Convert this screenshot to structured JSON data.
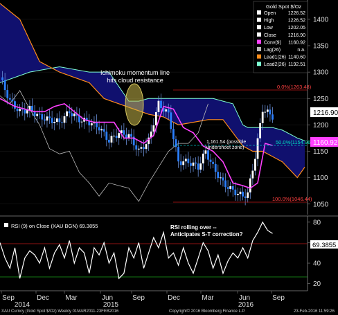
{
  "chart_data": [
    {
      "type": "line",
      "title": "Gold Spot $/Oz",
      "ylim": [
        1030,
        1430
      ],
      "y_ticks": [
        1050,
        1100,
        1150,
        1200,
        1250,
        1300,
        1350,
        1400
      ],
      "legend": [
        {
          "label": "Open",
          "value": "1226.52",
          "color": "#ffffff"
        },
        {
          "label": "High",
          "value": "1226.52",
          "color": "#ffffff"
        },
        {
          "label": "Low",
          "value": "1202.05",
          "color": "#ffffff"
        },
        {
          "label": "Close",
          "value": "1216.90",
          "color": "#ffffff"
        },
        {
          "label": "Conv(9)",
          "value": "1160.92",
          "color": "#ff40ff"
        },
        {
          "label": "Lag(26)",
          "value": "n.a.",
          "color": "#bbbbbb"
        },
        {
          "label": "Lead1(26)",
          "value": "1140.60",
          "color": "#ff8c1a"
        },
        {
          "label": "Lead2(26)",
          "value": "1192.51",
          "color": "#7fffd4"
        }
      ],
      "last_close_label": "1216.90",
      "conv_label": "1160.92",
      "fib_levels": [
        {
          "label": "0.0%(1263.48)",
          "value": 1263.48
        },
        {
          "label": "50.0%(1154.96)",
          "value": 1154.96
        },
        {
          "label": "100.0%(1046.44)",
          "value": 1046.44
        }
      ],
      "annotations": [
        "Ichimoku momentum line hits cloud resistance",
        "1,161.54 (possible undershoot zone)"
      ],
      "series": [
        {
          "name": "Close",
          "x": [
            0,
            4,
            8,
            12,
            16,
            20,
            24,
            28,
            32,
            36,
            40,
            44,
            48,
            52,
            56,
            60,
            64,
            68,
            72,
            76,
            80,
            83,
            86,
            90,
            94,
            98,
            100,
            103,
            106,
            110
          ],
          "values": [
            1290,
            1245,
            1225,
            1230,
            1215,
            1210,
            1205,
            1225,
            1210,
            1205,
            1195,
            1170,
            1185,
            1180,
            1150,
            1170,
            1240,
            1220,
            1130,
            1130,
            1120,
            1150,
            1120,
            1090,
            1075,
            1065,
            1070,
            1140,
            1230,
            1216
          ]
        },
        {
          "name": "Conv(9)",
          "x": [
            0,
            6,
            10,
            14,
            18,
            22,
            26,
            30,
            34,
            38,
            42,
            46,
            50,
            54,
            58,
            62,
            66,
            70,
            74,
            78,
            82,
            86,
            90,
            94,
            98,
            101,
            104,
            107,
            110
          ],
          "values": [
            1250,
            1235,
            1230,
            1225,
            1225,
            1235,
            1240,
            1225,
            1210,
            1205,
            1205,
            1205,
            1175,
            1175,
            1165,
            1180,
            1235,
            1230,
            1195,
            1185,
            1160,
            1150,
            1130,
            1090,
            1085,
            1080,
            1090,
            1165,
            1161
          ]
        },
        {
          "name": "Lag(26)",
          "x": [
            0,
            4,
            8,
            12,
            16,
            20,
            24,
            28,
            32,
            36,
            40,
            44,
            48,
            52,
            56,
            60,
            64,
            68,
            72,
            76,
            80,
            84
          ],
          "values": [
            1255,
            1240,
            1265,
            1230,
            1200,
            1155,
            1145,
            1150,
            1110,
            1090,
            1065,
            1090,
            1085,
            1080,
            1055,
            1090,
            1120,
            1150,
            1165,
            1165,
            1185,
            1240
          ]
        },
        {
          "name": "Lead1(26)",
          "x": [
            0,
            8,
            16,
            24,
            30,
            36,
            42,
            48,
            54,
            60,
            66,
            72,
            78,
            84,
            90,
            94,
            98,
            102,
            106,
            110,
            114,
            118,
            120,
            123
          ],
          "values": [
            1430,
            1400,
            1320,
            1300,
            1290,
            1280,
            1250,
            1240,
            1230,
            1220,
            1215,
            1200,
            1205,
            1210,
            1210,
            1185,
            1160,
            1150,
            1150,
            1140,
            1130,
            1110,
            1100,
            1120
          ]
        },
        {
          "name": "Lead2(26)",
          "x": [
            0,
            12,
            24,
            36,
            44,
            52,
            56,
            60,
            68,
            74,
            80,
            86,
            90,
            94,
            98,
            100,
            106,
            110,
            114,
            118,
            120,
            123
          ],
          "values": [
            1280,
            1300,
            1310,
            1300,
            1300,
            1245,
            1245,
            1250,
            1250,
            1250,
            1250,
            1250,
            1245,
            1240,
            1200,
            1195,
            1195,
            1195,
            1190,
            1180,
            1175,
            1170
          ]
        }
      ]
    },
    {
      "type": "line",
      "title": "RSI (9) on Close (XAU BGN) 69.3855",
      "ylim": [
        13,
        86
      ],
      "y_ticks": [
        20,
        40,
        60,
        80
      ],
      "value_label": "69.3855",
      "overbought": 70,
      "oversold": 30,
      "annotation": "RSI rolling over -- Anticipates S-T correction?",
      "series": [
        {
          "name": "RSI",
          "x": [
            0,
            2,
            4,
            6,
            8,
            10,
            12,
            14,
            16,
            18,
            20,
            22,
            24,
            26,
            28,
            30,
            32,
            34,
            36,
            38,
            40,
            42,
            44,
            46,
            48,
            50,
            52,
            54,
            56,
            58,
            60,
            62,
            64,
            66,
            68,
            70,
            72,
            74,
            76,
            78,
            80,
            82,
            84,
            86,
            88,
            90,
            92,
            94,
            96,
            98,
            100,
            102,
            104,
            106,
            108,
            110
          ],
          "values": [
            60,
            45,
            35,
            55,
            25,
            45,
            52,
            48,
            40,
            55,
            35,
            50,
            58,
            45,
            62,
            40,
            55,
            50,
            30,
            55,
            48,
            60,
            40,
            50,
            25,
            30,
            55,
            45,
            60,
            35,
            50,
            65,
            55,
            70,
            45,
            50,
            38,
            55,
            40,
            30,
            45,
            60,
            52,
            35,
            48,
            30,
            42,
            50,
            45,
            55,
            45,
            62,
            70,
            80,
            72,
            69
          ]
        }
      ]
    }
  ],
  "x_axis": {
    "month_labels": [
      "Sep",
      "Dec",
      "Mar",
      "Jun",
      "Sep",
      "Dec",
      "Mar",
      "Jun",
      "Sep"
    ],
    "year_labels": [
      "2014",
      "2015",
      "2016"
    ]
  },
  "footer": {
    "left": "XAU Curncy (Gold Spot $/Oz) Weekly 01MAR2011-23FEB2016",
    "center": "Copyright© 2016 Bloomberg Finance L.P.",
    "right": "23-Feb-2016 11:59:26"
  }
}
